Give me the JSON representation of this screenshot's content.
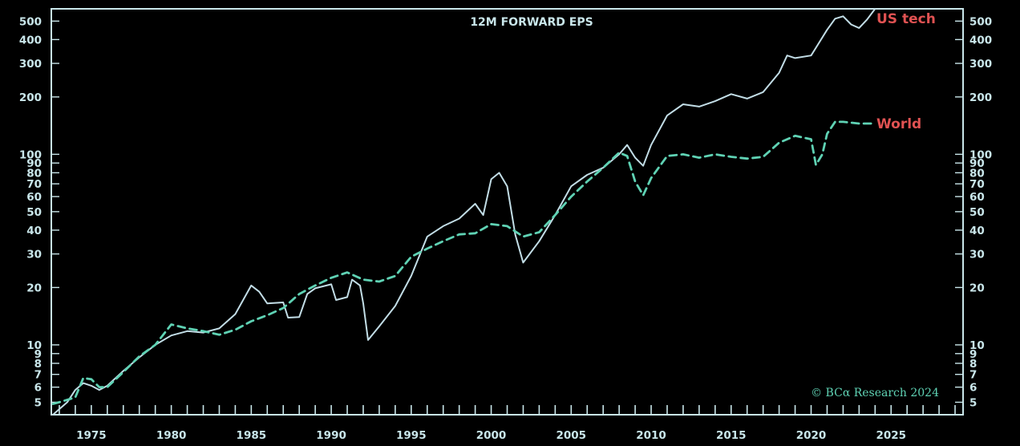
{
  "chart_data": {
    "type": "line",
    "title": "12M FORWARD EPS",
    "xlabel": "",
    "ylabel": "",
    "xlim": [
      1972.5,
      2029.5
    ],
    "ylim": [
      4.3,
      580
    ],
    "yscale": "log",
    "grid": false,
    "legend": "inline labels at right end of lines",
    "x_ticks": [
      "1975",
      "1980",
      "1985",
      "1990",
      "1995",
      "2000",
      "2005",
      "2010",
      "2015",
      "2020",
      "2025"
    ],
    "y_ticks": [
      "5",
      "6",
      "7",
      "8",
      "9",
      "10",
      "20",
      "30",
      "40",
      "50",
      "60",
      "70",
      "80",
      "90",
      "100",
      "200",
      "300",
      "400",
      "500"
    ],
    "copyright": "© BCα Research 2024",
    "series": [
      {
        "name": "US tech",
        "color": "#e05252",
        "line_color": "#c2dde6",
        "style": "solid",
        "points": [
          [
            1972.6,
            4.3
          ],
          [
            1973.0,
            4.6
          ],
          [
            1973.5,
            5.0
          ],
          [
            1974.0,
            5.8
          ],
          [
            1974.5,
            6.3
          ],
          [
            1975.0,
            6.1
          ],
          [
            1975.5,
            5.8
          ],
          [
            1976.0,
            6.1
          ],
          [
            1977.0,
            7.3
          ],
          [
            1978.0,
            8.6
          ],
          [
            1979.0,
            10.0
          ],
          [
            1980.0,
            11.2
          ],
          [
            1981.0,
            11.8
          ],
          [
            1982.0,
            11.6
          ],
          [
            1983.0,
            12.2
          ],
          [
            1984.0,
            14.5
          ],
          [
            1985.0,
            20.5
          ],
          [
            1985.5,
            19.0
          ],
          [
            1986.0,
            16.5
          ],
          [
            1987.0,
            16.7
          ],
          [
            1987.3,
            13.9
          ],
          [
            1988.0,
            14.0
          ],
          [
            1988.5,
            18.5
          ],
          [
            1989.0,
            19.8
          ],
          [
            1990.0,
            20.8
          ],
          [
            1990.3,
            17.2
          ],
          [
            1991.0,
            17.8
          ],
          [
            1991.3,
            22.0
          ],
          [
            1991.8,
            20.5
          ],
          [
            1992.0,
            16.5
          ],
          [
            1992.3,
            10.6
          ],
          [
            1993.0,
            12.5
          ],
          [
            1994.0,
            16.0
          ],
          [
            1995.0,
            23.0
          ],
          [
            1996.0,
            37.0
          ],
          [
            1997.0,
            42.0
          ],
          [
            1998.0,
            46.0
          ],
          [
            1999.0,
            55.0
          ],
          [
            1999.5,
            48.0
          ],
          [
            2000.0,
            74.0
          ],
          [
            2000.5,
            80.0
          ],
          [
            2001.0,
            68.0
          ],
          [
            2001.5,
            38.0
          ],
          [
            2002.0,
            27.0
          ],
          [
            2003.0,
            35.0
          ],
          [
            2004.0,
            48.0
          ],
          [
            2005.0,
            68.0
          ],
          [
            2006.0,
            78.0
          ],
          [
            2007.0,
            85.0
          ],
          [
            2008.0,
            100.0
          ],
          [
            2008.5,
            112.0
          ],
          [
            2009.0,
            96.0
          ],
          [
            2009.5,
            87.0
          ],
          [
            2010.0,
            112.0
          ],
          [
            2011.0,
            160.0
          ],
          [
            2012.0,
            183.0
          ],
          [
            2013.0,
            178.0
          ],
          [
            2014.0,
            190.0
          ],
          [
            2015.0,
            207.0
          ],
          [
            2016.0,
            196.0
          ],
          [
            2017.0,
            212.0
          ],
          [
            2018.0,
            268.0
          ],
          [
            2018.5,
            330.0
          ],
          [
            2019.0,
            320.0
          ],
          [
            2020.0,
            330.0
          ],
          [
            2021.0,
            450.0
          ],
          [
            2021.5,
            515.0
          ],
          [
            2022.0,
            530.0
          ],
          [
            2022.5,
            480.0
          ],
          [
            2023.0,
            460.0
          ],
          [
            2023.5,
            510.0
          ],
          [
            2024.0,
            580.0
          ]
        ]
      },
      {
        "name": "World",
        "color": "#e05252",
        "line_color": "#5fd2b4",
        "style": "dashed",
        "points": [
          [
            1972.6,
            4.9
          ],
          [
            1973.0,
            5.0
          ],
          [
            1974.0,
            5.3
          ],
          [
            1974.5,
            6.7
          ],
          [
            1975.0,
            6.6
          ],
          [
            1975.5,
            6.0
          ],
          [
            1976.0,
            6.0
          ],
          [
            1977.0,
            7.2
          ],
          [
            1978.0,
            8.7
          ],
          [
            1979.0,
            10.0
          ],
          [
            1980.0,
            12.8
          ],
          [
            1981.0,
            12.2
          ],
          [
            1982.0,
            11.8
          ],
          [
            1983.0,
            11.3
          ],
          [
            1984.0,
            12.0
          ],
          [
            1985.0,
            13.3
          ],
          [
            1986.0,
            14.3
          ],
          [
            1987.0,
            15.6
          ],
          [
            1988.0,
            18.5
          ],
          [
            1989.0,
            20.5
          ],
          [
            1990.0,
            22.5
          ],
          [
            1991.0,
            24.0
          ],
          [
            1992.0,
            22.0
          ],
          [
            1993.0,
            21.5
          ],
          [
            1994.0,
            23.0
          ],
          [
            1995.0,
            29.0
          ],
          [
            1996.0,
            32.0
          ],
          [
            1997.0,
            35.0
          ],
          [
            1998.0,
            38.0
          ],
          [
            1999.0,
            38.5
          ],
          [
            2000.0,
            43.0
          ],
          [
            2001.0,
            42.0
          ],
          [
            2002.0,
            37.0
          ],
          [
            2003.0,
            39.0
          ],
          [
            2004.0,
            48.0
          ],
          [
            2005.0,
            60.0
          ],
          [
            2006.0,
            72.0
          ],
          [
            2007.0,
            85.0
          ],
          [
            2008.0,
            102.0
          ],
          [
            2008.5,
            98.0
          ],
          [
            2009.0,
            72.0
          ],
          [
            2009.5,
            61.0
          ],
          [
            2010.0,
            75.0
          ],
          [
            2011.0,
            98.0
          ],
          [
            2012.0,
            100.0
          ],
          [
            2013.0,
            96.0
          ],
          [
            2014.0,
            100.0
          ],
          [
            2015.0,
            97.0
          ],
          [
            2016.0,
            95.0
          ],
          [
            2017.0,
            97.0
          ],
          [
            2018.0,
            115.0
          ],
          [
            2019.0,
            125.0
          ],
          [
            2020.0,
            120.0
          ],
          [
            2020.3,
            88.0
          ],
          [
            2020.7,
            100.0
          ],
          [
            2021.0,
            128.0
          ],
          [
            2021.5,
            148.0
          ],
          [
            2022.0,
            148.0
          ],
          [
            2023.0,
            145.0
          ],
          [
            2024.0,
            145.0
          ]
        ]
      }
    ]
  }
}
